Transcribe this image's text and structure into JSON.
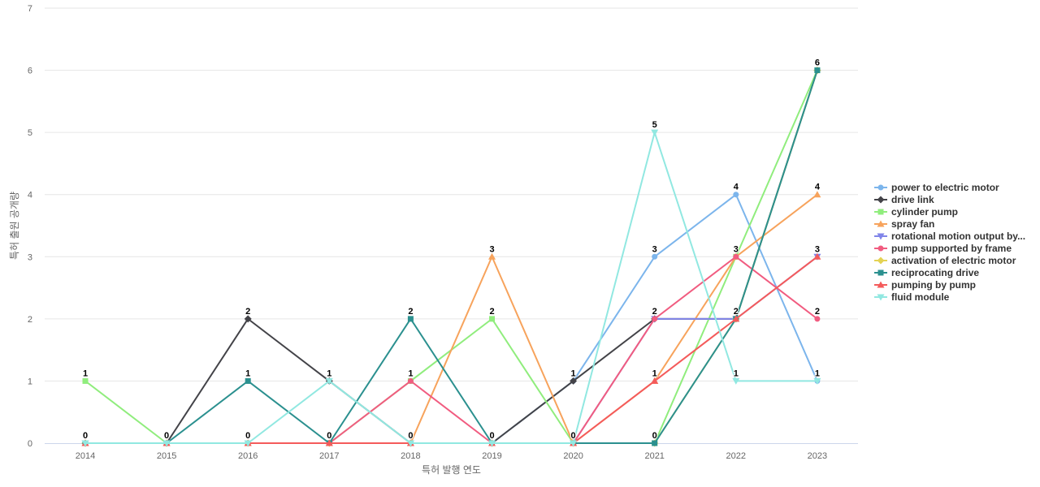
{
  "chart_data": {
    "type": "line",
    "title": "",
    "xlabel": "특허 발행 연도",
    "ylabel": "특허 출원 공개량",
    "x": [
      "2014",
      "2015",
      "2016",
      "2017",
      "2018",
      "2019",
      "2020",
      "2021",
      "2022",
      "2023"
    ],
    "ylim": [
      0,
      7
    ],
    "yticks": [
      0,
      1,
      2,
      3,
      4,
      5,
      6,
      7
    ],
    "grid": true,
    "legend_position": "right",
    "series": [
      {
        "name": "power to electric motor",
        "color": "#7cb5ec",
        "marker": "circle",
        "values": [
          0,
          0,
          0,
          0,
          0,
          0,
          1,
          3,
          4,
          1
        ],
        "labels": [
          null,
          null,
          null,
          null,
          null,
          null,
          null,
          3,
          4,
          1
        ]
      },
      {
        "name": "drive link",
        "color": "#434348",
        "marker": "diamond",
        "values": [
          0,
          0,
          2,
          1,
          0,
          0,
          1,
          2,
          2,
          6
        ],
        "labels": [
          null,
          null,
          2,
          null,
          null,
          null,
          1,
          null,
          null,
          null
        ]
      },
      {
        "name": "cylinder pump",
        "color": "#90ed7d",
        "marker": "square",
        "values": [
          1,
          0,
          0,
          0,
          1,
          2,
          0,
          0,
          3,
          6
        ],
        "labels": [
          1,
          null,
          null,
          null,
          null,
          2,
          null,
          null,
          null,
          null
        ]
      },
      {
        "name": "spray fan",
        "color": "#f7a35c",
        "marker": "triangle",
        "values": [
          0,
          0,
          0,
          0,
          0,
          3,
          0,
          1,
          3,
          4
        ],
        "labels": [
          null,
          null,
          null,
          null,
          null,
          3,
          null,
          null,
          null,
          4
        ]
      },
      {
        "name": "rotational motion output by...",
        "color": "#8085e9",
        "marker": "triangle-down",
        "values": [
          0,
          0,
          0,
          0,
          0,
          0,
          0,
          2,
          2,
          3
        ],
        "labels": [
          null,
          null,
          null,
          null,
          null,
          null,
          null,
          null,
          null,
          null
        ]
      },
      {
        "name": "pump supported by frame",
        "color": "#f15c80",
        "marker": "circle",
        "values": [
          0,
          0,
          0,
          0,
          1,
          0,
          0,
          2,
          3,
          2
        ],
        "labels": [
          null,
          null,
          null,
          null,
          1,
          null,
          null,
          2,
          3,
          2
        ]
      },
      {
        "name": "activation of electric motor",
        "color": "#e4d354",
        "marker": "diamond",
        "values": [
          0,
          0,
          0,
          0,
          0,
          0,
          0,
          0,
          2,
          6
        ],
        "labels": [
          null,
          null,
          null,
          null,
          null,
          null,
          null,
          null,
          null,
          null
        ]
      },
      {
        "name": "reciprocating drive",
        "color": "#2b908f",
        "marker": "square",
        "values": [
          0,
          0,
          1,
          0,
          2,
          0,
          0,
          0,
          2,
          6
        ],
        "labels": [
          0,
          0,
          1,
          0,
          2,
          0,
          0,
          0,
          2,
          6
        ]
      },
      {
        "name": "pumping by pump",
        "color": "#f45b5b",
        "marker": "triangle",
        "values": [
          0,
          0,
          0,
          0,
          0,
          0,
          0,
          1,
          2,
          3
        ],
        "labels": [
          null,
          null,
          0,
          null,
          0,
          null,
          null,
          1,
          null,
          3
        ]
      },
      {
        "name": "fluid module",
        "color": "#91e8e1",
        "marker": "triangle-down",
        "values": [
          0,
          0,
          0,
          1,
          0,
          0,
          0,
          5,
          1,
          1
        ],
        "labels": [
          null,
          null,
          null,
          1,
          null,
          null,
          null,
          5,
          1,
          null
        ]
      }
    ]
  }
}
